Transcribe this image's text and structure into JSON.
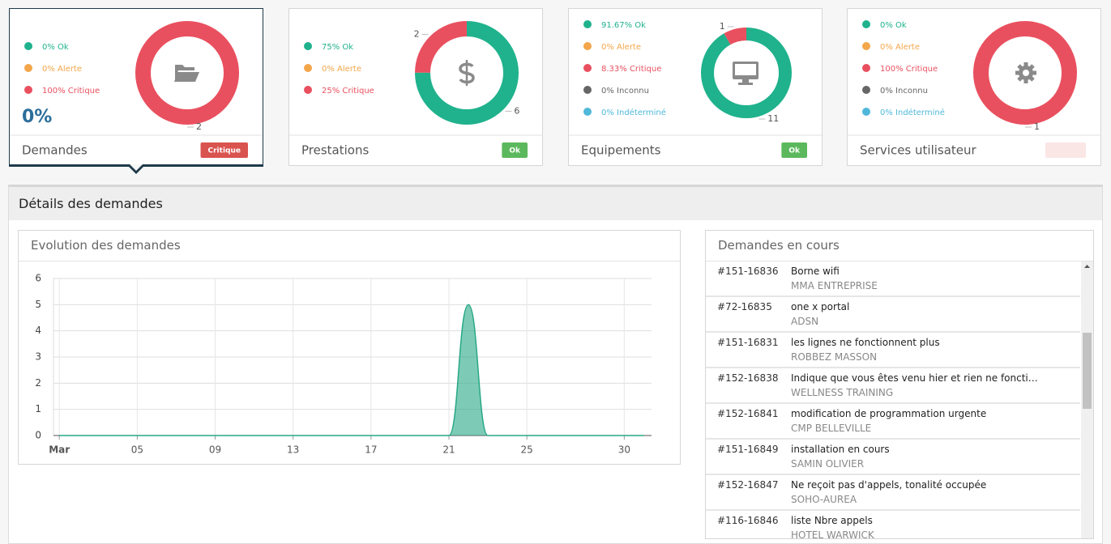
{
  "cards": [
    {
      "title": "Demandes",
      "big_value": "0%",
      "badge": "Critique",
      "badge_color": "#d9534f",
      "legend": [
        {
          "label": "0% Ok",
          "color": "#1fb28d"
        },
        {
          "label": "0% Alerte",
          "color": "#f3a64a"
        },
        {
          "label": "100% Critique",
          "color": "#e9505f"
        }
      ],
      "donut": [
        {
          "value": 2,
          "color": "#e9505f"
        }
      ]
    },
    {
      "title": "Prestations",
      "badge": "Ok",
      "badge_color": "#5cb85c",
      "legend": [
        {
          "label": "75% Ok",
          "color": "#1fb28d"
        },
        {
          "label": "0% Alerte",
          "color": "#f3a64a"
        },
        {
          "label": "25% Critique",
          "color": "#e9505f"
        }
      ],
      "donut": [
        {
          "value": 6,
          "color": "#1fb28d"
        },
        {
          "value": 2,
          "color": "#e9505f"
        }
      ]
    },
    {
      "title": "Equipements",
      "badge": "Ok",
      "badge_color": "#5cb85c",
      "legend": [
        {
          "label": "91.67% Ok",
          "color": "#1fb28d"
        },
        {
          "label": "0% Alerte",
          "color": "#f3a64a"
        },
        {
          "label": "8.33% Critique",
          "color": "#e9505f"
        },
        {
          "label": "0% Inconnu",
          "color": "#666666"
        },
        {
          "label": "0% Indéterminé",
          "color": "#4fb8da"
        }
      ],
      "donut": [
        {
          "value": 11,
          "color": "#1fb28d"
        },
        {
          "value": 1,
          "color": "#e9505f"
        }
      ]
    },
    {
      "title": "Services utilisateur",
      "legend": [
        {
          "label": "0% Ok",
          "color": "#1fb28d"
        },
        {
          "label": "0% Alerte",
          "color": "#f3a64a"
        },
        {
          "label": "100% Critique",
          "color": "#e9505f"
        },
        {
          "label": "0% Inconnu",
          "color": "#666666"
        },
        {
          "label": "0% Indéterminé",
          "color": "#4fb8da"
        }
      ],
      "donut": [
        {
          "value": 1,
          "color": "#e9505f"
        }
      ]
    }
  ],
  "section_title": "Détails des demandes",
  "chart_data": {
    "type": "area",
    "title": "Evolution des demandes",
    "x": [
      1,
      2,
      3,
      4,
      5,
      6,
      7,
      8,
      9,
      10,
      11,
      12,
      13,
      14,
      15,
      16,
      17,
      18,
      19,
      20,
      21,
      22,
      23,
      24,
      25,
      26,
      27,
      28,
      29,
      30,
      31
    ],
    "values": [
      0,
      0,
      0,
      0,
      0,
      0,
      0,
      0,
      0,
      0,
      0,
      0,
      0,
      0,
      0,
      0,
      0,
      0,
      0,
      0,
      0,
      5,
      0,
      0,
      0,
      0,
      0,
      0,
      0,
      0,
      0
    ],
    "color": "#27a886",
    "xlim": [
      0.7,
      31.4
    ],
    "xticks": [
      {
        "value": 1,
        "label": "Mar"
      },
      {
        "value": 5,
        "label": "05"
      },
      {
        "value": 9,
        "label": "09"
      },
      13,
      17,
      21,
      25,
      30
    ],
    "ylim": [
      0,
      6
    ],
    "yticks": [
      0,
      1,
      2,
      3,
      4,
      5,
      6
    ],
    "grid": true
  },
  "list": {
    "title": "Demandes en cours",
    "items": [
      {
        "id": "#151-16836",
        "subject": "Borne wifi",
        "client": "MMA ENTREPRISE"
      },
      {
        "id": "#72-16835",
        "subject": "one x portal",
        "client": "ADSN"
      },
      {
        "id": "#151-16831",
        "subject": "les lignes ne fonctionnent plus",
        "client": "ROBBEZ MASSON"
      },
      {
        "id": "#152-16838",
        "subject": "Indique que vous êtes venu hier et rien ne foncti…",
        "client": "WELLNESS TRAINING"
      },
      {
        "id": "#152-16841",
        "subject": "modification de programmation urgente",
        "client": "CMP BELLEVILLE"
      },
      {
        "id": "#151-16849",
        "subject": "installation en cours",
        "client": "SAMIN OLIVIER"
      },
      {
        "id": "#152-16847",
        "subject": "Ne reçoit pas d'appels, tonalité occupée",
        "client": "SOHO-AUREA"
      },
      {
        "id": "#116-16846",
        "subject": "liste Nbre appels",
        "client": "HOTEL WARWICK"
      }
    ]
  }
}
